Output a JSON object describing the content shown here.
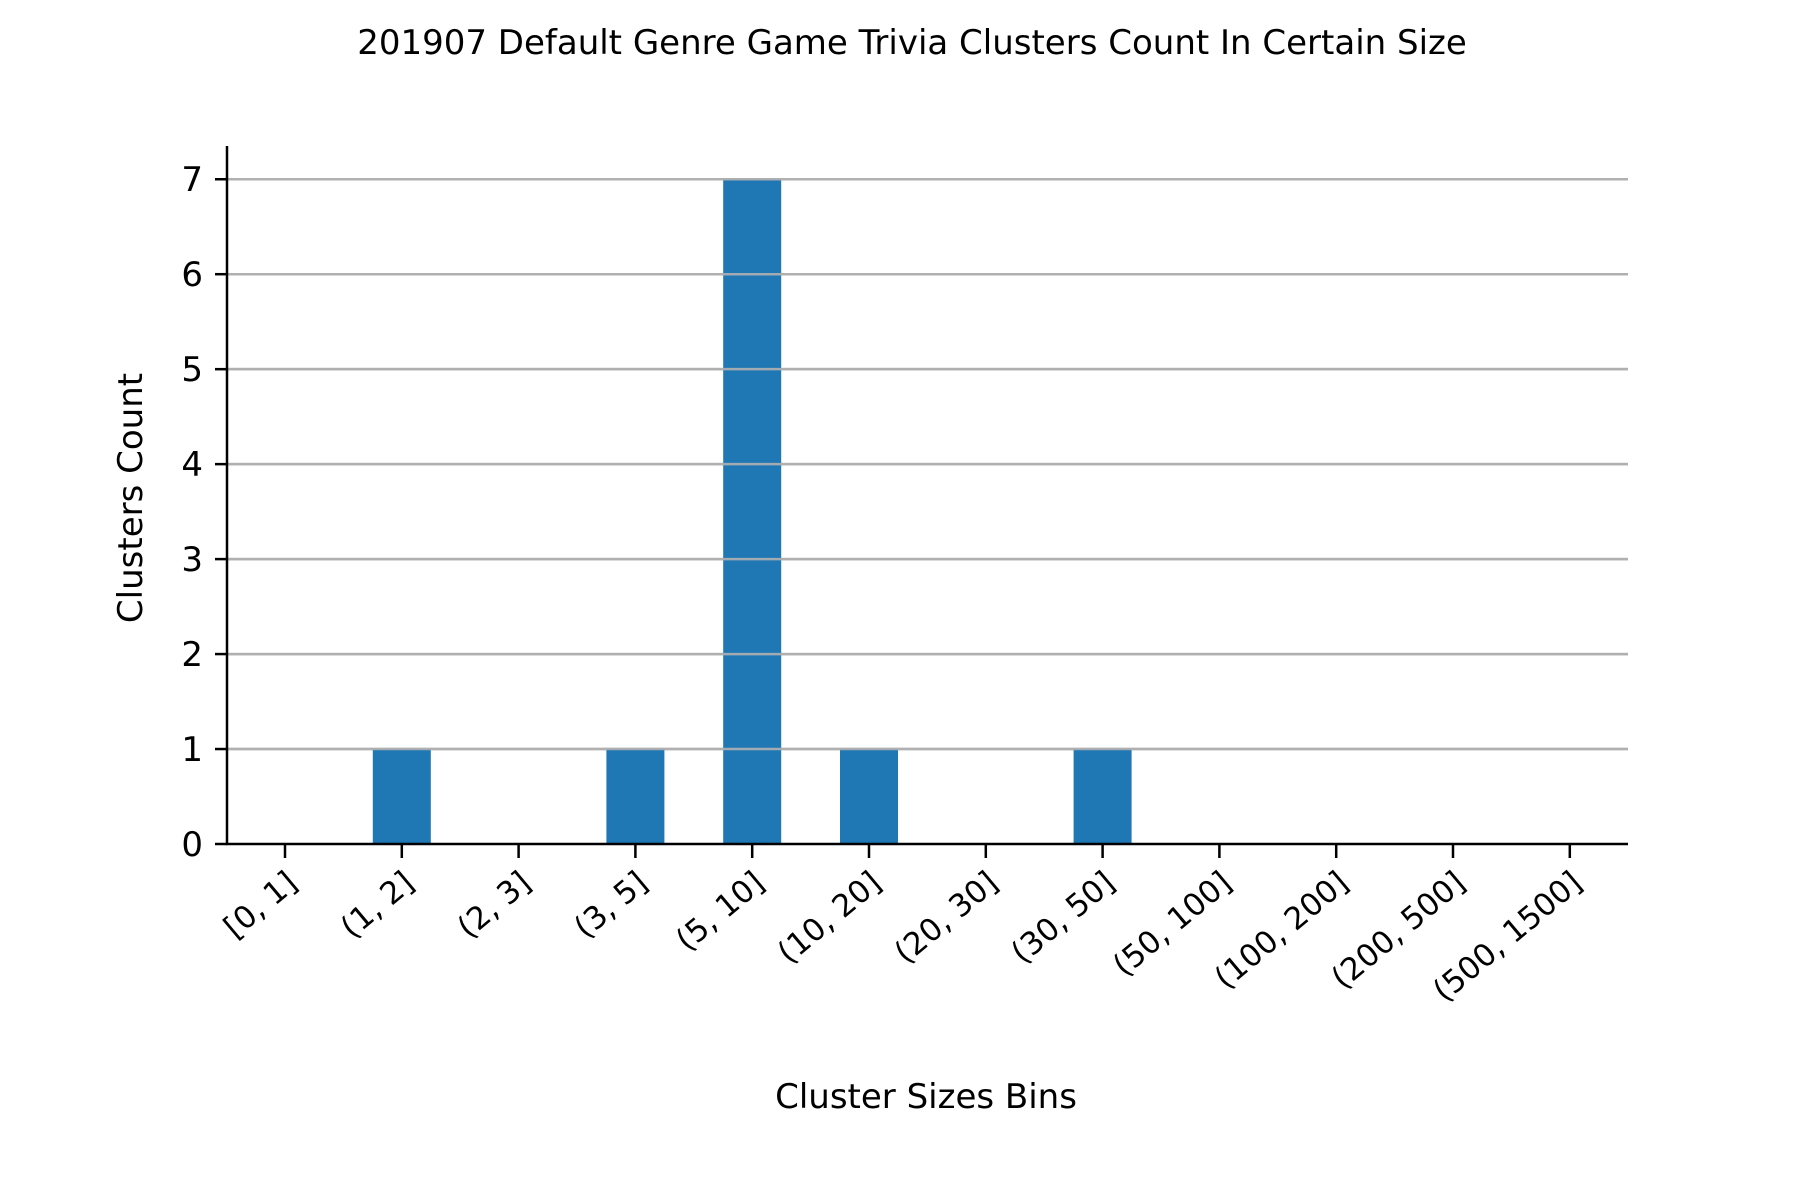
{
  "chart_data": {
    "type": "bar",
    "title": "201907 Default Genre Game Trivia Clusters Count In Certain Size",
    "xlabel": "Cluster Sizes Bins",
    "ylabel": "Clusters Count",
    "categories": [
      "[0, 1]",
      "(1, 2]",
      "(2, 3]",
      "(3, 5]",
      "(5, 10]",
      "(10, 20]",
      "(20, 30]",
      "(30, 50]",
      "(50, 100]",
      "(100, 200]",
      "(200, 500]",
      "(500, 1500]"
    ],
    "values": [
      0,
      1,
      0,
      1,
      7,
      1,
      0,
      1,
      0,
      0,
      0,
      0
    ],
    "ylim": [
      0,
      7.35
    ],
    "yticks": [
      0,
      1,
      2,
      3,
      4,
      5,
      6,
      7
    ],
    "grid": "y",
    "legend": "none",
    "colors": {
      "bar": "#1f77b4",
      "grid": "#b0b0b0",
      "axis": "#000000"
    }
  }
}
